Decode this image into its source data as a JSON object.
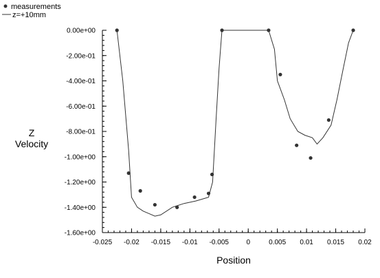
{
  "chart_data": {
    "type": "scatter",
    "xlabel": "Position",
    "ylabel_lines": [
      "Z",
      "Velocity"
    ],
    "xlim": [
      -0.025,
      0.02
    ],
    "ylim": [
      -1.6,
      0.0
    ],
    "xticks": [
      -0.025,
      -0.02,
      -0.015,
      -0.01,
      -0.005,
      0,
      0.005,
      0.01,
      0.015,
      0.02
    ],
    "xtick_labels": [
      "-0.025",
      "-0.02",
      "-0.015",
      "-0.01",
      "-0.005",
      "0",
      "0.005",
      "0.01",
      "0.015",
      "0.02"
    ],
    "yticks": [
      0.0,
      -0.2,
      -0.4,
      -0.6,
      -0.8,
      -1.0,
      -1.2,
      -1.4,
      -1.6
    ],
    "ytick_labels": [
      "0.00e+00",
      "-2.00e-01",
      "-4.00e-01",
      "-6.00e-01",
      "-8.00e-01",
      "-1.00e+00",
      "-1.20e+00",
      "-1.40e+00",
      "-1.60e+00"
    ],
    "legend_position": "top-left",
    "series": [
      {
        "name": "measurements",
        "kind": "points",
        "color": "#333333",
        "points": [
          [
            -0.0225,
            0.0
          ],
          [
            -0.0205,
            -1.13
          ],
          [
            -0.0185,
            -1.27
          ],
          [
            -0.016,
            -1.38
          ],
          [
            -0.0122,
            -1.4
          ],
          [
            -0.0092,
            -1.32
          ],
          [
            -0.0068,
            -1.29
          ],
          [
            -0.0062,
            -1.14
          ],
          [
            -0.0045,
            0.0
          ],
          [
            0.0035,
            0.0
          ],
          [
            0.0055,
            -0.35
          ],
          [
            0.0083,
            -0.91
          ],
          [
            0.0107,
            -1.01
          ],
          [
            0.0138,
            -0.71
          ],
          [
            0.018,
            0.0
          ]
        ]
      },
      {
        "name": "z=+10mm",
        "kind": "line",
        "color": "#333333",
        "points": [
          [
            -0.0225,
            0.0
          ],
          [
            -0.0215,
            -0.4
          ],
          [
            -0.0205,
            -0.95
          ],
          [
            -0.02,
            -1.32
          ],
          [
            -0.019,
            -1.4
          ],
          [
            -0.018,
            -1.43
          ],
          [
            -0.017,
            -1.45
          ],
          [
            -0.016,
            -1.47
          ],
          [
            -0.015,
            -1.46
          ],
          [
            -0.013,
            -1.4
          ],
          [
            -0.011,
            -1.37
          ],
          [
            -0.009,
            -1.35
          ],
          [
            -0.0075,
            -1.33
          ],
          [
            -0.0068,
            -1.32
          ],
          [
            -0.0061,
            -1.2
          ],
          [
            -0.0055,
            -0.7
          ],
          [
            -0.005,
            -0.3
          ],
          [
            -0.0045,
            0.0
          ],
          [
            0.0035,
            0.0
          ],
          [
            0.0045,
            -0.15
          ],
          [
            0.005,
            -0.4
          ],
          [
            0.0062,
            -0.55
          ],
          [
            0.0072,
            -0.7
          ],
          [
            0.0085,
            -0.8
          ],
          [
            0.0097,
            -0.83
          ],
          [
            0.011,
            -0.85
          ],
          [
            0.0118,
            -0.9
          ],
          [
            0.0128,
            -0.85
          ],
          [
            0.0142,
            -0.75
          ],
          [
            0.0152,
            -0.55
          ],
          [
            0.0163,
            -0.3
          ],
          [
            0.0172,
            -0.1
          ],
          [
            0.018,
            0.0
          ]
        ]
      }
    ]
  }
}
